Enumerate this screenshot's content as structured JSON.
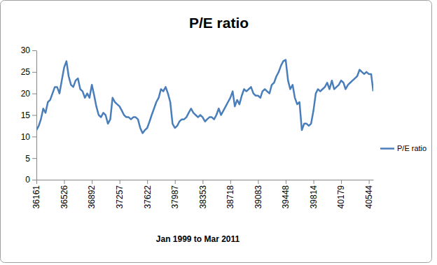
{
  "chart_data": {
    "type": "line",
    "title": "P/E ratio",
    "x_label": "Jan 1999 to Mar 2011",
    "x": [
      36161,
      36192,
      36220,
      36251,
      36281,
      36312,
      36342,
      36373,
      36404,
      36434,
      36465,
      36495,
      36526,
      36557,
      36586,
      36617,
      36647,
      36678,
      36708,
      36739,
      36770,
      36800,
      36831,
      36861,
      36892,
      36923,
      36951,
      36982,
      37012,
      37043,
      37073,
      37104,
      37135,
      37165,
      37196,
      37226,
      37257,
      37288,
      37316,
      37347,
      37377,
      37408,
      37438,
      37469,
      37500,
      37530,
      37561,
      37591,
      37622,
      37653,
      37681,
      37712,
      37742,
      37773,
      37803,
      37834,
      37865,
      37895,
      37926,
      37956,
      37987,
      38018,
      38047,
      38078,
      38108,
      38139,
      38169,
      38200,
      38231,
      38261,
      38292,
      38322,
      38353,
      38384,
      38412,
      38443,
      38473,
      38504,
      38534,
      38565,
      38596,
      38626,
      38657,
      38687,
      38718,
      38749,
      38777,
      38808,
      38838,
      38869,
      38899,
      38930,
      38961,
      38991,
      39022,
      39052,
      39083,
      39114,
      39142,
      39173,
      39203,
      39234,
      39264,
      39295,
      39326,
      39356,
      39387,
      39417,
      39448,
      39479,
      39508,
      39539,
      39569,
      39600,
      39630,
      39661,
      39692,
      39722,
      39753,
      39783,
      39814,
      39845,
      39873,
      39904,
      39934,
      39965,
      39995,
      40026,
      40057,
      40087,
      40118,
      40148,
      40179,
      40210,
      40238,
      40269,
      40299,
      40330,
      40360,
      40391,
      40422,
      40452,
      40483,
      40513,
      40544,
      40575,
      40603
    ],
    "series": [
      {
        "name": "P/E ratio",
        "color": "#4a7ebb",
        "values": [
          11.5,
          12.5,
          14,
          16.5,
          15.5,
          18,
          18.5,
          20,
          21.5,
          21.5,
          20,
          23,
          26,
          27.5,
          24,
          22,
          21.5,
          23,
          23.5,
          21,
          20.5,
          19,
          20,
          19,
          22,
          19.5,
          17,
          15,
          14.5,
          15.5,
          15,
          13,
          14,
          19,
          18,
          17.5,
          17,
          16,
          15,
          14.5,
          14.5,
          14,
          14.5,
          14.5,
          14,
          12,
          10.8,
          11.5,
          12,
          13.5,
          15,
          16.5,
          18,
          19,
          21,
          20.5,
          21.5,
          20,
          18,
          13,
          12,
          12.5,
          13.5,
          14,
          14,
          14.5,
          15.5,
          16.5,
          15.5,
          15,
          14.5,
          15,
          14.5,
          13.5,
          14,
          14.5,
          14.5,
          14,
          15,
          16.5,
          15,
          16,
          17,
          18,
          19,
          20.5,
          17,
          18.5,
          17.5,
          19.5,
          21,
          20.5,
          21,
          21.5,
          20,
          19.5,
          19.5,
          19,
          20.5,
          21,
          20.5,
          20,
          22,
          22.5,
          24,
          25,
          26.5,
          27.5,
          27.8,
          23,
          21,
          22,
          19,
          17.5,
          18,
          11.5,
          13,
          13,
          12.5,
          13,
          16,
          20,
          21,
          20.5,
          21,
          21.5,
          22.5,
          21,
          23,
          21,
          21.5,
          22,
          23,
          22.5,
          21,
          22,
          22.5,
          23,
          23.5,
          24,
          25.5,
          25,
          24.5,
          25,
          24.5,
          24.5,
          20.5
        ]
      }
    ],
    "xlim": [
      36161,
      40603
    ],
    "xticks": [
      36161,
      36526,
      36892,
      37257,
      37622,
      37987,
      38353,
      38718,
      39083,
      39448,
      39814,
      40179,
      40544
    ],
    "ylim": [
      0,
      30
    ],
    "yticks": [
      0,
      5,
      10,
      15,
      20,
      25,
      30
    ],
    "grid": false,
    "legend": "right"
  }
}
